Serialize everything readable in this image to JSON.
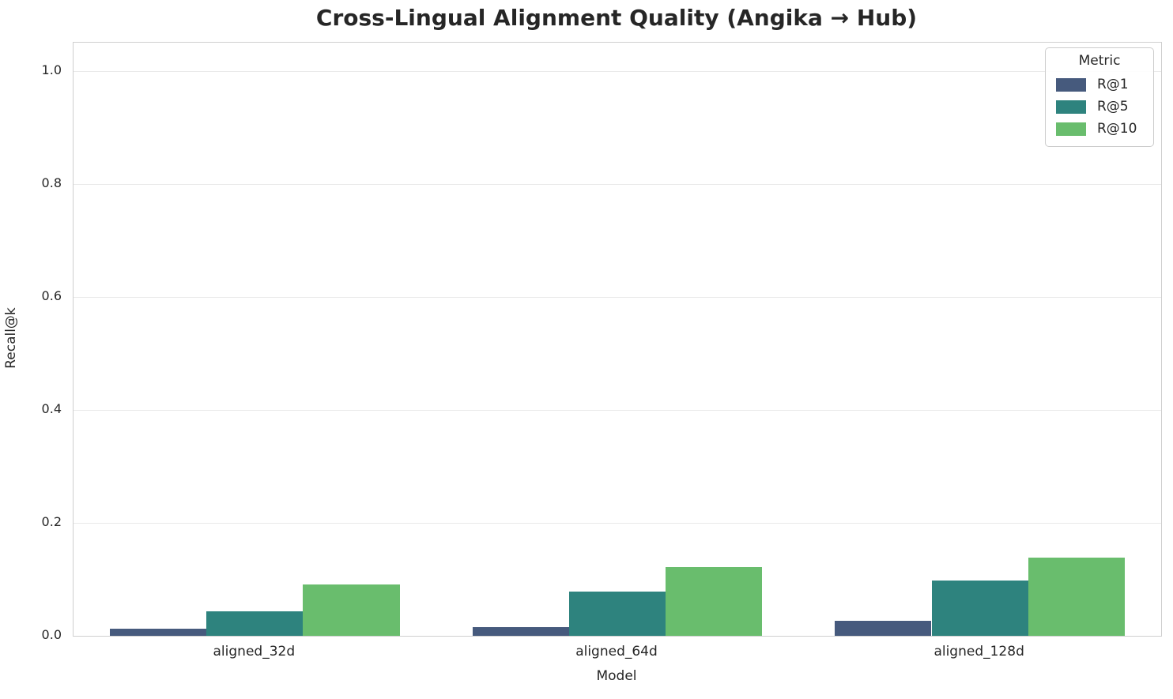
{
  "chart_data": {
    "type": "bar",
    "title": "Cross-Lingual Alignment Quality (Angika → Hub)",
    "xlabel": "Model",
    "ylabel": "Recall@k",
    "categories": [
      "aligned_32d",
      "aligned_64d",
      "aligned_128d"
    ],
    "series": [
      {
        "name": "R@1",
        "color": "#465a7d",
        "values": [
          0.013,
          0.015,
          0.026
        ]
      },
      {
        "name": "R@5",
        "color": "#2e837e",
        "values": [
          0.044,
          0.079,
          0.098
        ]
      },
      {
        "name": "R@10",
        "color": "#69bd6d",
        "values": [
          0.091,
          0.121,
          0.139
        ]
      }
    ],
    "yticks": [
      0.0,
      0.2,
      0.4,
      0.6,
      0.8,
      1.0
    ],
    "ytick_labels": [
      "0.0",
      "0.2",
      "0.4",
      "0.6",
      "0.8",
      "1.0"
    ],
    "ylim": [
      0,
      1.05
    ],
    "grid": true,
    "bar_group_width": 0.8,
    "legend": {
      "title": "Metric",
      "position": "upper right",
      "entries": [
        "R@1",
        "R@5",
        "R@10"
      ]
    }
  }
}
